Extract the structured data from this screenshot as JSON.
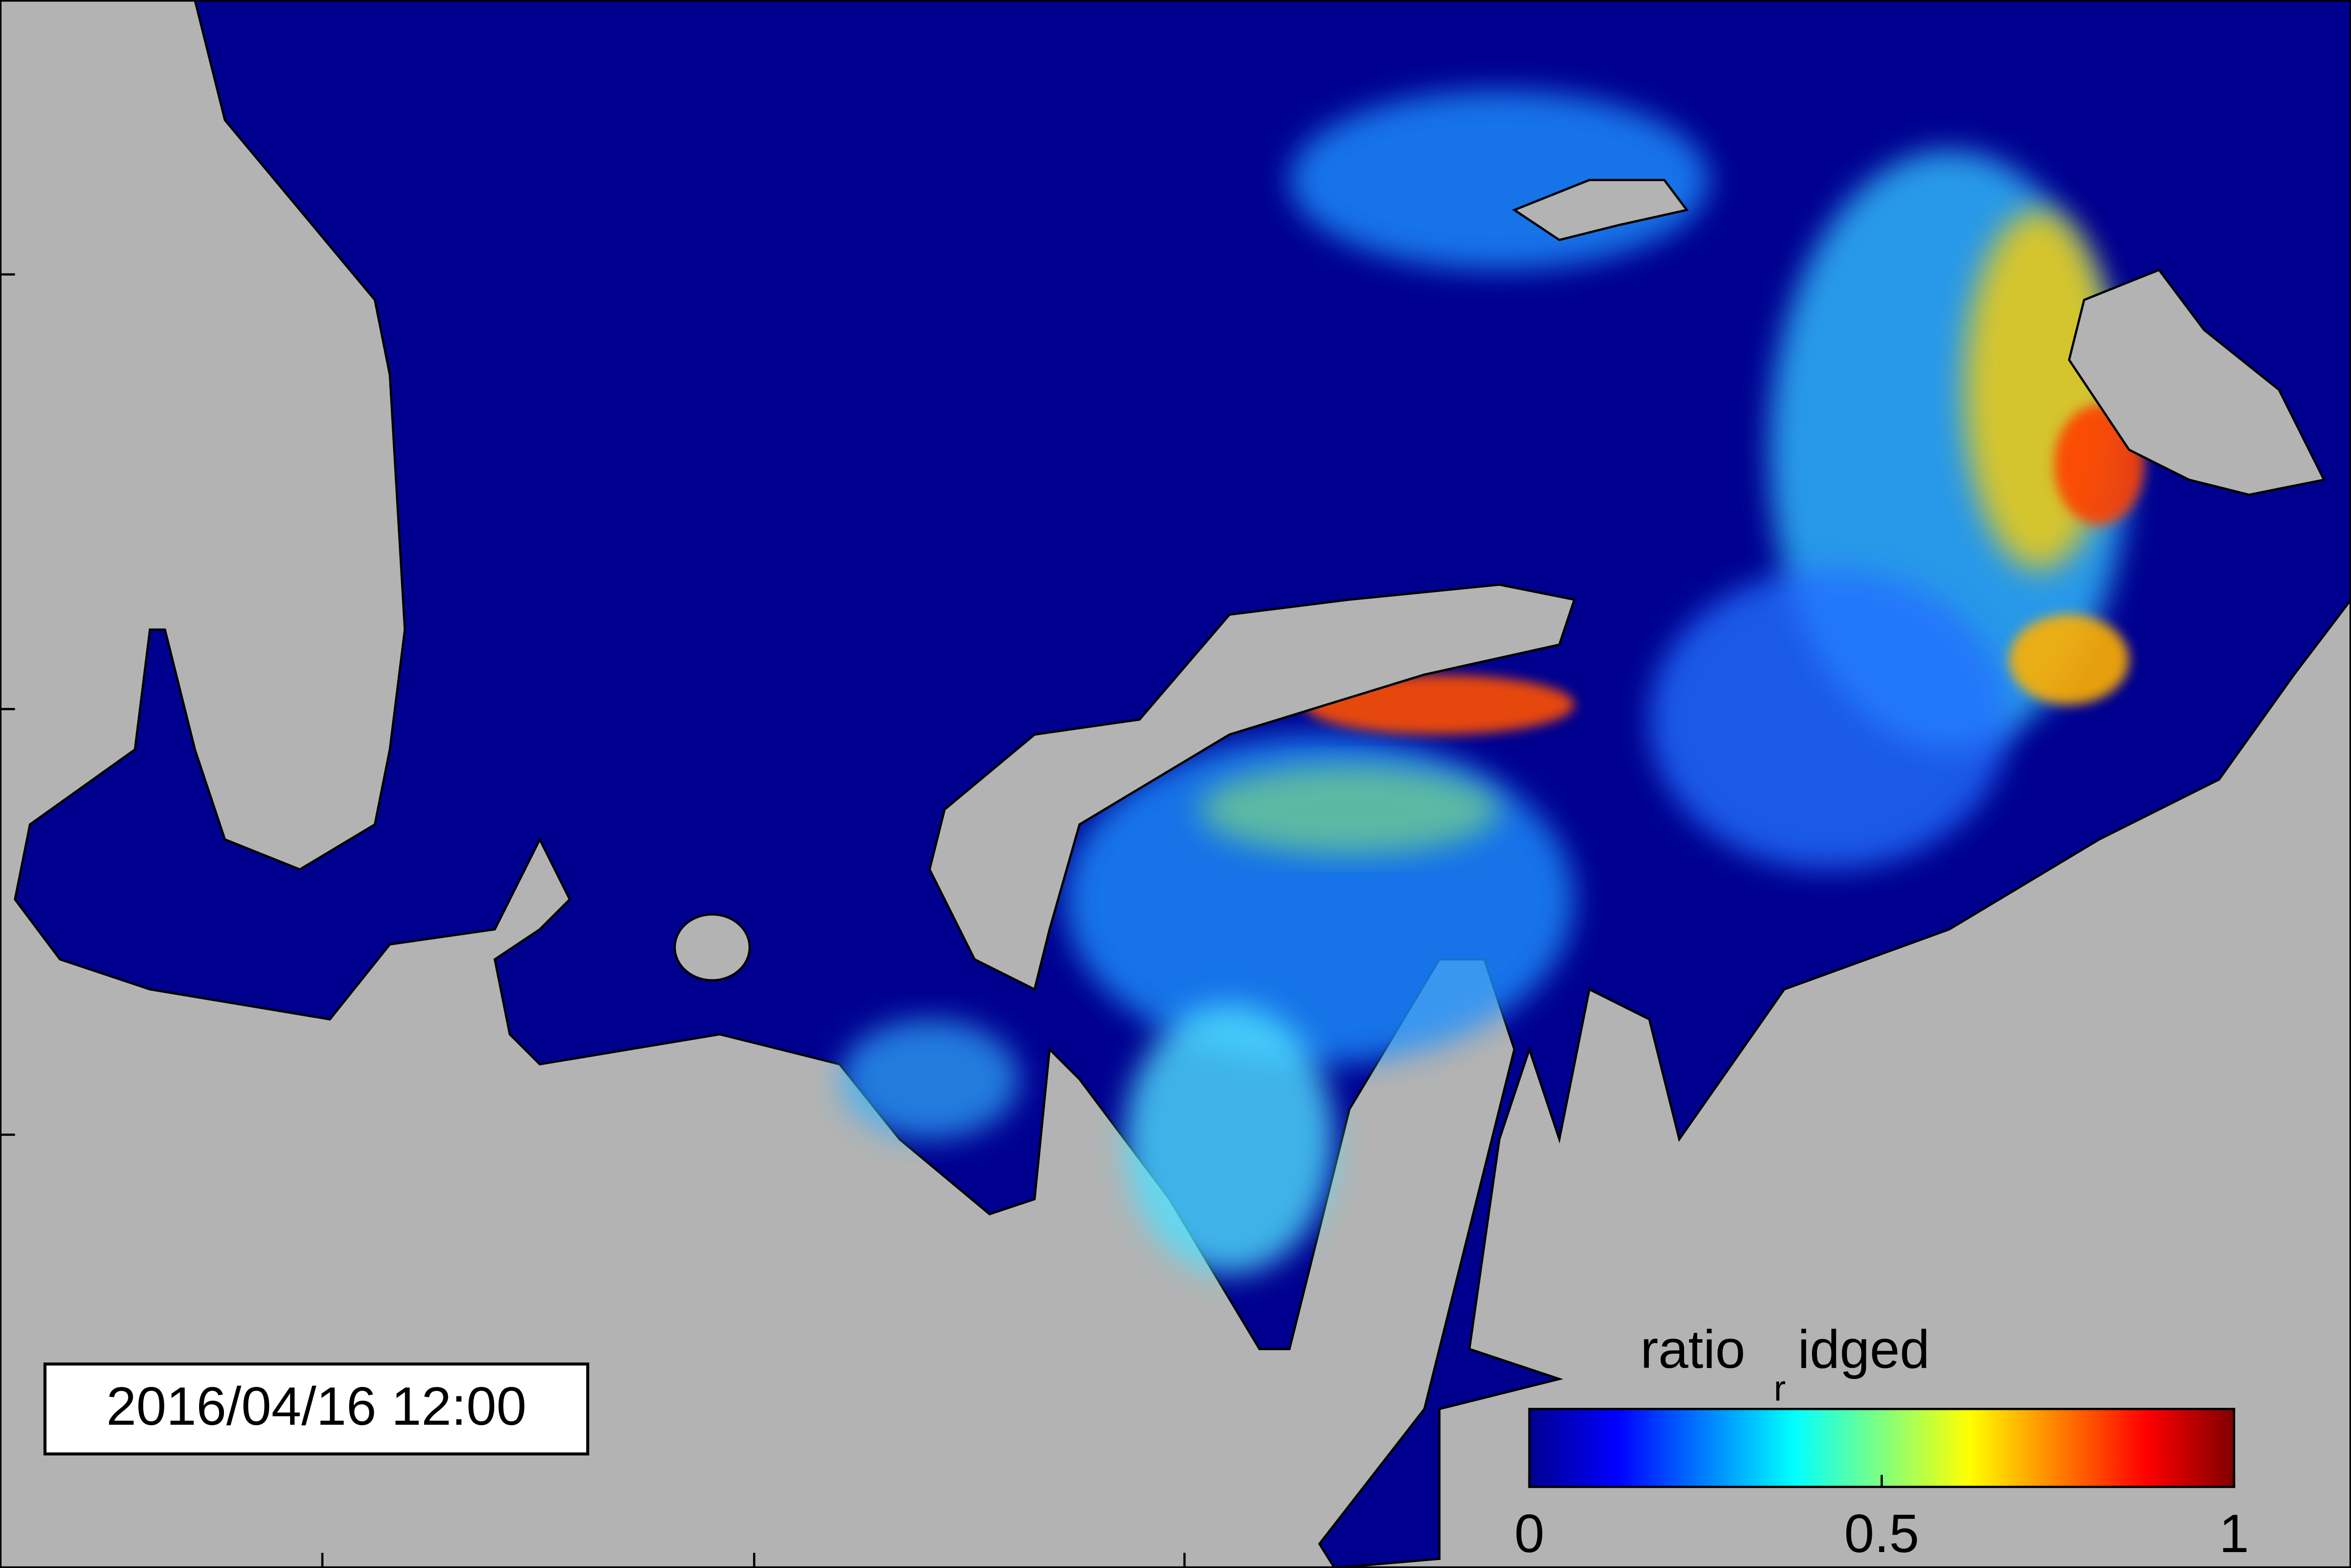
{
  "timestamp": "2016/04/16 12:00",
  "colorbar": {
    "title_parts": [
      "ratio",
      "r",
      "idged"
    ],
    "lim": [
      0,
      1
    ],
    "ticks": [
      0,
      0.5,
      1
    ]
  }
}
